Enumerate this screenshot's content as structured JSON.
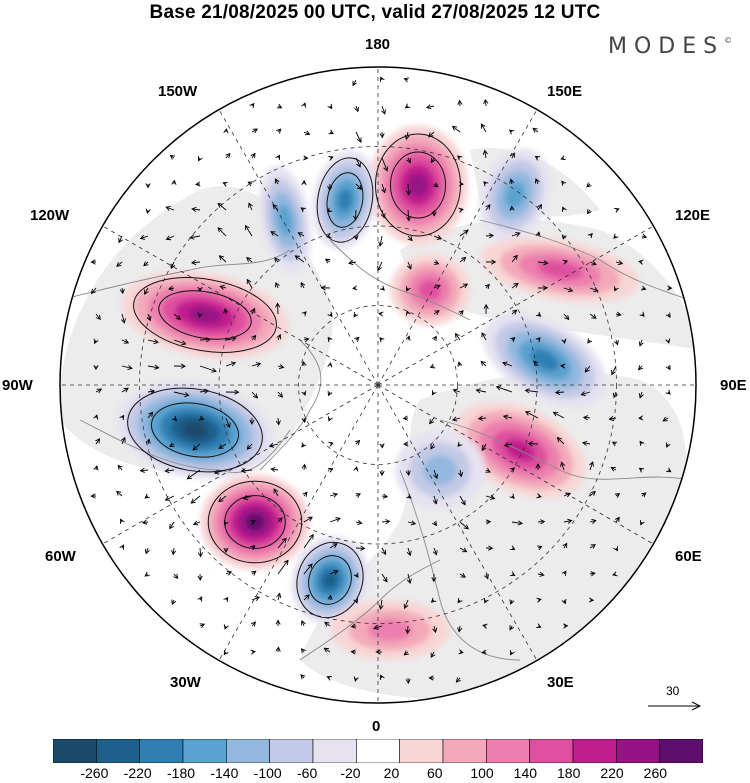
{
  "title": "Base 21/08/2025 00 UTC, valid 27/08/2025 12 UTC",
  "logo": "MODES",
  "logo_mark": "©",
  "longitude_labels": {
    "lon_180": "180",
    "lon_150e": "150E",
    "lon_120e": "120E",
    "lon_90e": "90E",
    "lon_60e": "60E",
    "lon_30e": "30E",
    "lon_0": "0",
    "lon_30w": "30W",
    "lon_60w": "60W",
    "lon_90w": "90W",
    "lon_120w": "120W",
    "lon_150w": "150W"
  },
  "reference_vector": "30",
  "colorbar": {
    "ticks": [
      "-260",
      "-220",
      "-180",
      "-140",
      "-100",
      "-60",
      "-20",
      "20",
      "60",
      "100",
      "140",
      "180",
      "220",
      "260"
    ],
    "colors": [
      "#1b4a6b",
      "#1f5f8b",
      "#2f7fb3",
      "#5aa2cf",
      "#93b7de",
      "#c3c9e6",
      "#e6e2f0",
      "#ffffff",
      "#f8d6d6",
      "#f3a9b9",
      "#ec7fae",
      "#df4f9f",
      "#c11d8e",
      "#951385",
      "#5e0f6e"
    ]
  },
  "anomalies": [
    {
      "sign": "negative",
      "level": 6
    },
    {
      "sign": "positive",
      "level": 6
    },
    {
      "sign": "positive",
      "level": 5
    },
    {
      "sign": "negative",
      "level": 5
    },
    {
      "sign": "positive",
      "level": 5
    },
    {
      "sign": "negative",
      "level": 4
    },
    {
      "sign": "negative",
      "level": 4
    },
    {
      "sign": "positive",
      "level": 4
    },
    {
      "sign": "negative",
      "level": 3
    },
    {
      "sign": "negative",
      "level": 3
    },
    {
      "sign": "positive",
      "level": 3
    },
    {
      "sign": "positive",
      "level": 3
    },
    {
      "sign": "negative",
      "level": 2
    },
    {
      "sign": "positive",
      "level": 2
    }
  ]
}
